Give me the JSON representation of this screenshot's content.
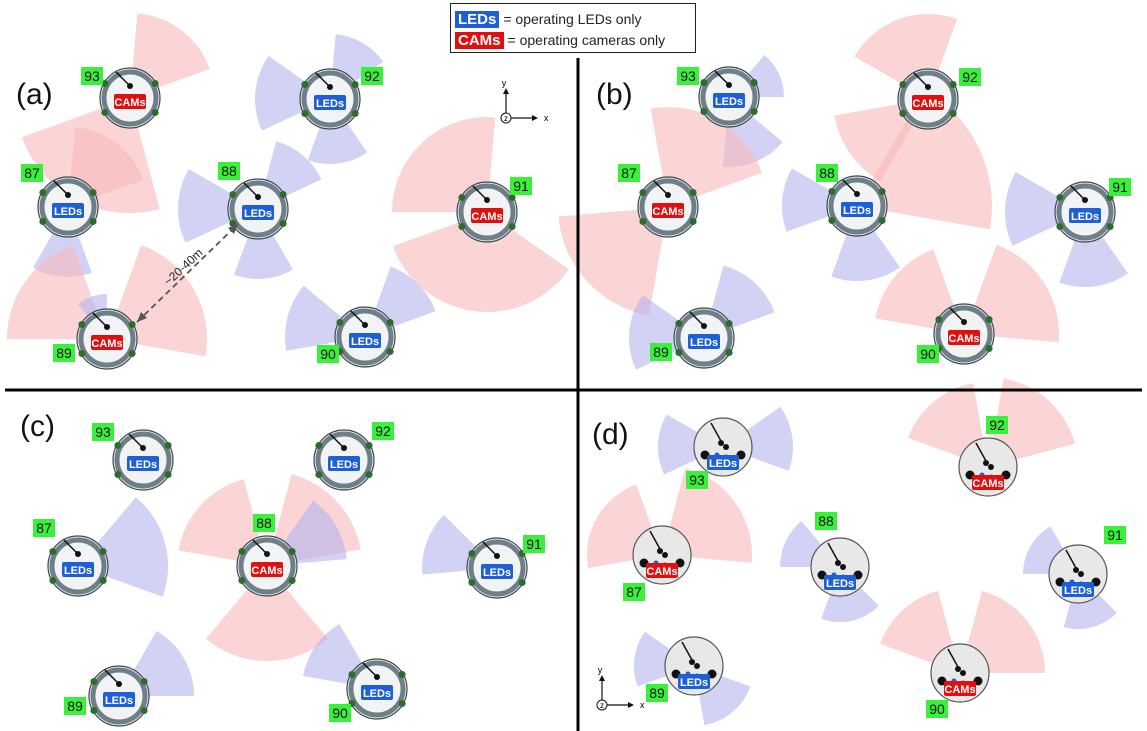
{
  "legend": {
    "led_tag": "LEDs",
    "led_text": "= operating LEDs only",
    "cam_tag": "CAMs",
    "cam_text": "= operating cameras only"
  },
  "tags": {
    "led": "LEDs",
    "cam": "CAMs"
  },
  "colors": {
    "led": "#1f5fd6",
    "cam": "#e01010",
    "led_cone": "#b4b4ee",
    "cam_cone": "#f8b9b9",
    "id_bg": "#39f03a",
    "ring": "#6e7f88"
  },
  "axes": {
    "x": "x",
    "y": "y",
    "z": "z"
  },
  "distance_label": "~20-40m",
  "panels": [
    {
      "label": "(a)",
      "robots": [
        {
          "id": "93",
          "mode": "cam"
        },
        {
          "id": "92",
          "mode": "led"
        },
        {
          "id": "87",
          "mode": "led"
        },
        {
          "id": "88",
          "mode": "led"
        },
        {
          "id": "91",
          "mode": "cam"
        },
        {
          "id": "89",
          "mode": "cam"
        },
        {
          "id": "90",
          "mode": "led"
        }
      ]
    },
    {
      "label": "(b)",
      "robots": [
        {
          "id": "93",
          "mode": "led"
        },
        {
          "id": "92",
          "mode": "cam"
        },
        {
          "id": "87",
          "mode": "cam"
        },
        {
          "id": "88",
          "mode": "led"
        },
        {
          "id": "91",
          "mode": "led"
        },
        {
          "id": "89",
          "mode": "led"
        },
        {
          "id": "90",
          "mode": "cam"
        }
      ]
    },
    {
      "label": "(c)",
      "robots": [
        {
          "id": "93",
          "mode": "led"
        },
        {
          "id": "92",
          "mode": "led"
        },
        {
          "id": "87",
          "mode": "led"
        },
        {
          "id": "88",
          "mode": "cam"
        },
        {
          "id": "91",
          "mode": "led"
        },
        {
          "id": "89",
          "mode": "led"
        },
        {
          "id": "90",
          "mode": "led"
        }
      ]
    },
    {
      "label": "(d)",
      "robots": [
        {
          "id": "93",
          "mode": "led"
        },
        {
          "id": "92",
          "mode": "cam"
        },
        {
          "id": "87",
          "mode": "cam"
        },
        {
          "id": "88",
          "mode": "led"
        },
        {
          "id": "91",
          "mode": "led"
        },
        {
          "id": "89",
          "mode": "led"
        },
        {
          "id": "90",
          "mode": "cam"
        }
      ]
    }
  ]
}
